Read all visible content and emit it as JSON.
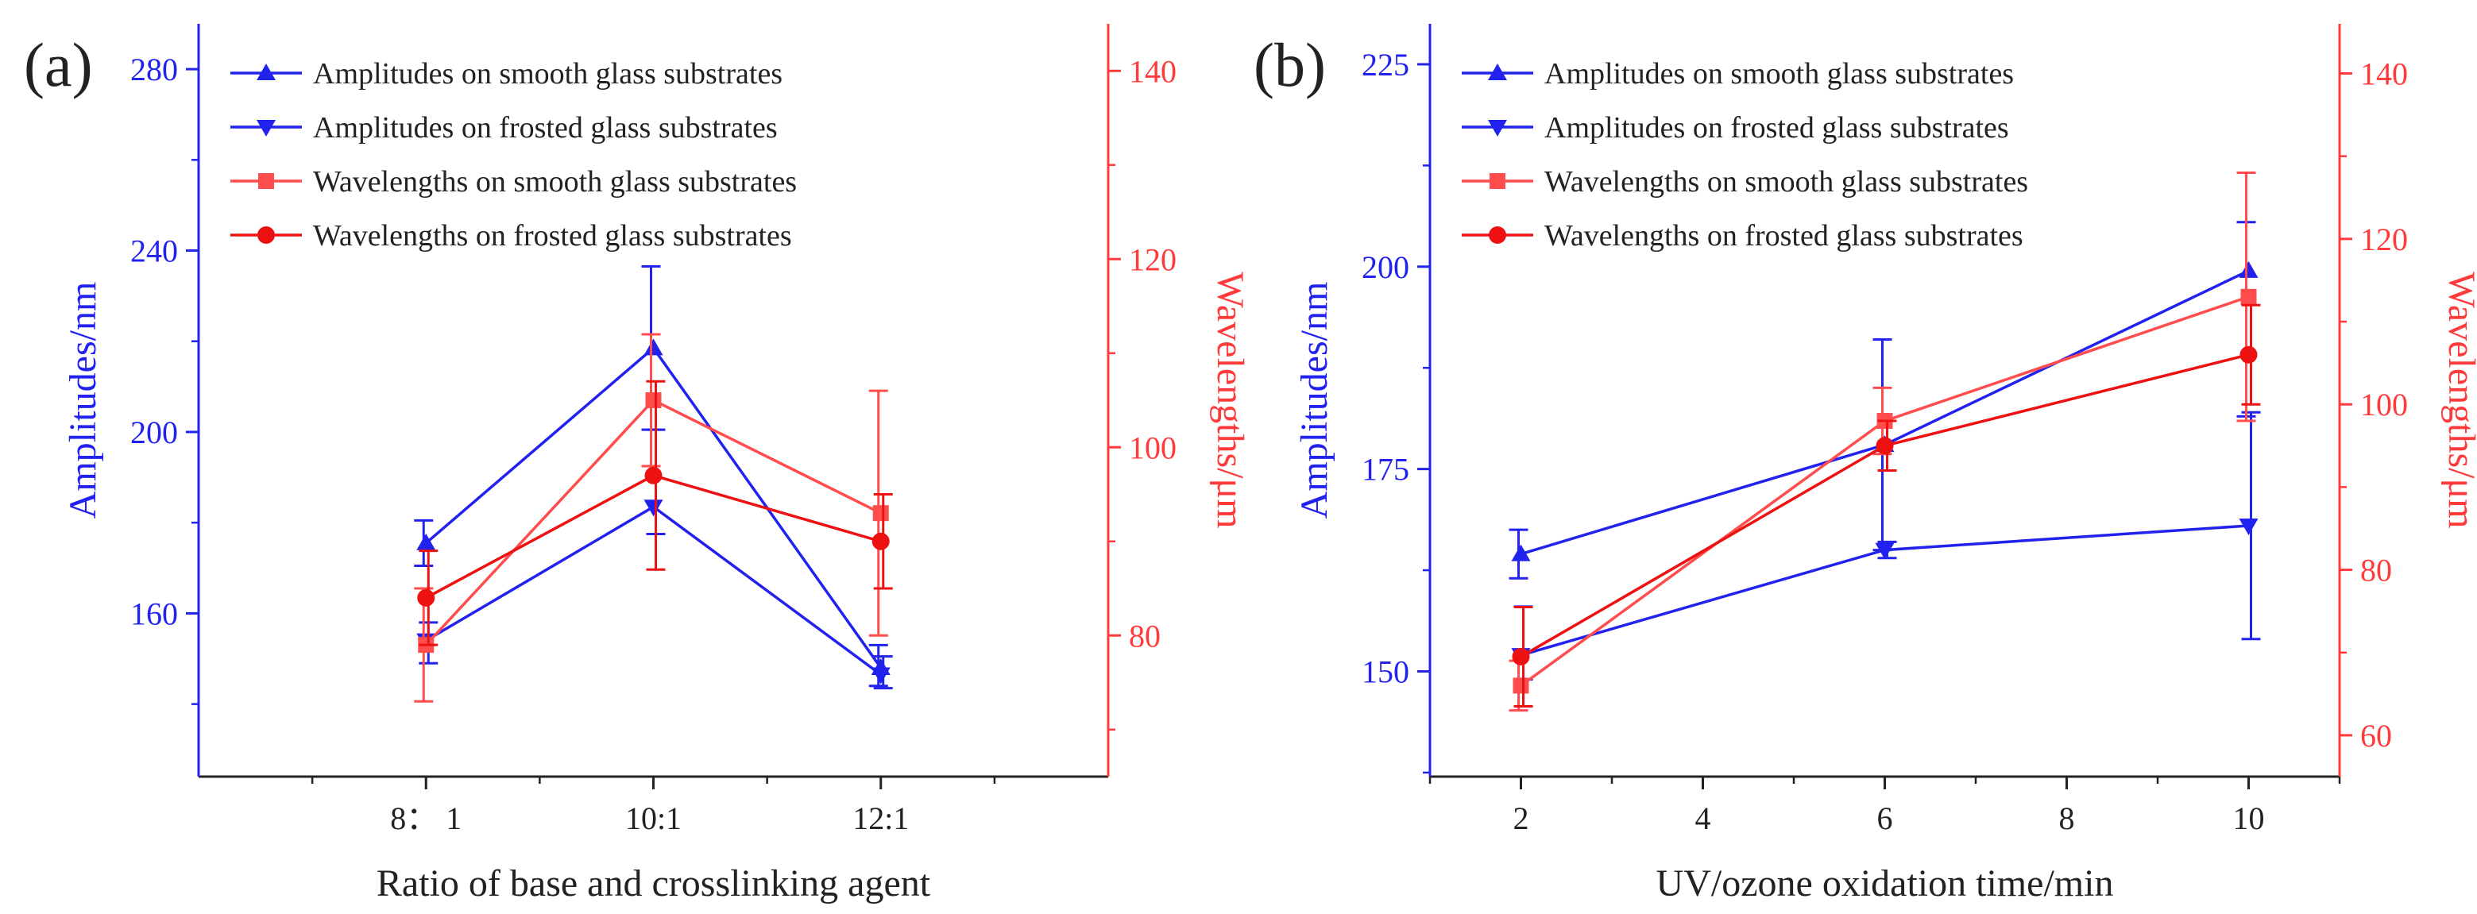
{
  "chart_data": [
    {
      "panel_label": "(a)",
      "type": "line",
      "xlabel": "Ratio of base and crosslinking agent",
      "ylabel_left": "Amplitudes/nm",
      "ylabel_right": "Wavelengths/μm",
      "categories": [
        "8： 1",
        "10:1",
        "12:1"
      ],
      "y_left": {
        "lim": [
          124,
          290
        ],
        "ticks": [
          160,
          200,
          240,
          280
        ],
        "color": "#2222ee"
      },
      "y_right": {
        "lim": [
          65,
          145
        ],
        "ticks": [
          80,
          100,
          120,
          140
        ],
        "color": "#ff3a3a"
      },
      "series": [
        {
          "name": "Amplitudes on smooth glass substrates",
          "axis": "left",
          "marker": "triangle-up",
          "color": "#2222ee",
          "values": [
            175.5,
            218.5,
            148
          ],
          "err_low": [
            5,
            18,
            4
          ],
          "err_high": [
            5,
            18,
            5
          ]
        },
        {
          "name": "Amplitudes on frosted glass substrates",
          "axis": "left",
          "marker": "triangle-down",
          "color": "#2222ee",
          "values": [
            154,
            183.5,
            146.5
          ],
          "err_low": [
            5,
            6,
            3
          ],
          "err_high": [
            4,
            17,
            4
          ]
        },
        {
          "name": "Wavelengths on smooth glass substrates",
          "axis": "right",
          "marker": "square",
          "color": "#ff4d4d",
          "values": [
            79,
            105,
            93
          ],
          "err_low": [
            6,
            7,
            13
          ],
          "err_high": [
            6,
            7,
            13
          ]
        },
        {
          "name": "Wavelengths on frosted glass substrates",
          "axis": "right",
          "marker": "circle",
          "color": "#ee1111",
          "values": [
            84,
            97,
            90
          ],
          "err_low": [
            5,
            10,
            5
          ],
          "err_high": [
            5,
            10,
            5
          ]
        }
      ]
    },
    {
      "panel_label": "(b)",
      "type": "line",
      "xlabel": "UV/ozone oxidation time/min",
      "ylabel_left": "Amplitudes/nm",
      "ylabel_right": "Wavelengths/μm",
      "x": [
        2,
        6,
        10
      ],
      "x_ticks": [
        2,
        4,
        6,
        8,
        10
      ],
      "xlim": [
        1,
        11
      ],
      "y_left": {
        "lim": [
          137,
          230
        ],
        "ticks": [
          150,
          175,
          200,
          225
        ],
        "color": "#2222ee"
      },
      "y_right": {
        "lim": [
          55,
          146
        ],
        "ticks": [
          60,
          80,
          100,
          120,
          140
        ],
        "color": "#ff3a3a"
      },
      "series": [
        {
          "name": "Amplitudes on smooth glass substrates",
          "axis": "left",
          "marker": "triangle-up",
          "color": "#2222ee",
          "values": [
            164.5,
            178,
            199.5
          ],
          "err_low": [
            3,
            13,
            18
          ],
          "err_high": [
            3,
            13,
            6
          ]
        },
        {
          "name": "Amplitudes on frosted glass substrates",
          "axis": "left",
          "marker": "triangle-down",
          "color": "#2222ee",
          "values": [
            152,
            165,
            168
          ],
          "err_low": [
            3,
            1,
            14
          ],
          "err_high": [
            6,
            1,
            14
          ]
        },
        {
          "name": "Wavelengths on smooth glass substrates",
          "axis": "right",
          "marker": "square",
          "color": "#ff4d4d",
          "values": [
            66,
            98,
            113
          ],
          "err_low": [
            3,
            4,
            15
          ],
          "err_high": [
            3,
            4,
            15
          ]
        },
        {
          "name": "Wavelengths on frosted glass substrates",
          "axis": "right",
          "marker": "circle",
          "color": "#ee1111",
          "values": [
            69.5,
            95,
            106
          ],
          "err_low": [
            6,
            3,
            6
          ],
          "err_high": [
            6,
            3,
            6
          ]
        }
      ]
    }
  ]
}
